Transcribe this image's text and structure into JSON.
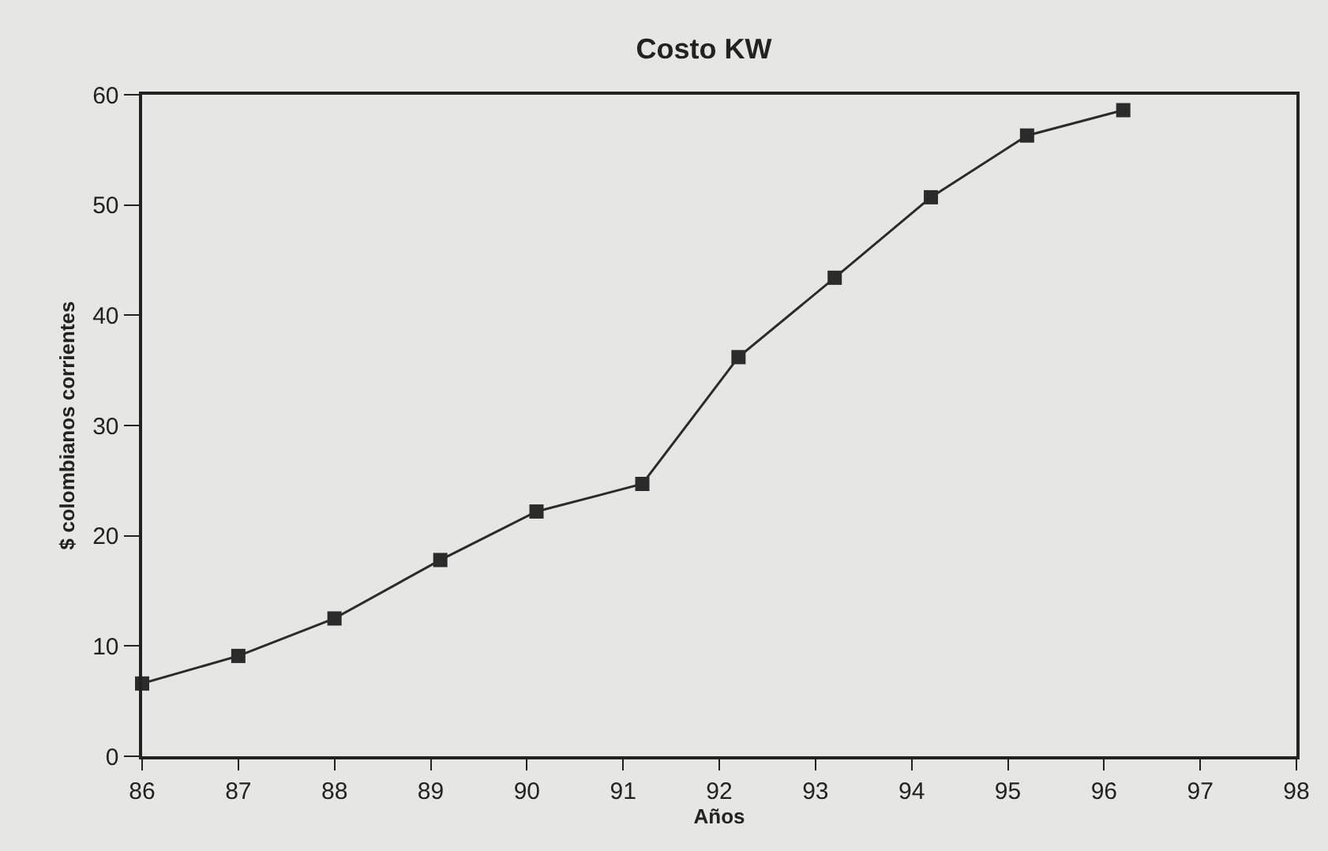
{
  "chart_data": {
    "type": "line",
    "title": "Costo KW",
    "xlabel": "Años",
    "ylabel": "$ colombianos corrientes",
    "x": [
      86,
      87,
      88,
      89.1,
      90.1,
      91.2,
      92.2,
      93.2,
      94.2,
      95.2,
      96.2
    ],
    "series": [
      {
        "color": "#2b2b2b",
        "values": [
          6.6,
          9.1,
          12.5,
          17.8,
          22.2,
          24.7,
          36.2,
          43.4,
          50.7,
          56.3,
          58.6
        ]
      }
    ],
    "xlim": [
      86,
      98
    ],
    "xticks": [
      86,
      87,
      88,
      89,
      90,
      91,
      92,
      93,
      94,
      95,
      96,
      97,
      98
    ],
    "ylim": [
      0,
      60
    ],
    "yticks": [
      0,
      10,
      20,
      30,
      40,
      50,
      60
    ],
    "grid": false,
    "marker": "square",
    "line_style": "solid"
  }
}
